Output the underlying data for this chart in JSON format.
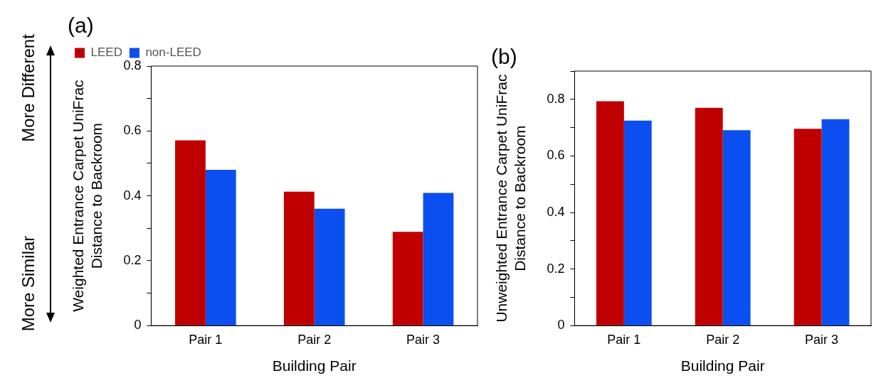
{
  "chart_data": [
    {
      "type": "bar",
      "title": "(a)",
      "categories": [
        "Pair 1",
        "Pair 2",
        "Pair 3"
      ],
      "xlabel": "Building Pair",
      "ylabel": "Weighted Entrance Carpet UniFrac\nDistance to Backroom",
      "series": [
        {
          "name": "LEED",
          "color": "#c00000",
          "values": [
            0.571,
            0.413,
            0.289
          ]
        },
        {
          "name": "non-LEED",
          "color": "#0b4ff0",
          "values": [
            0.48,
            0.36,
            0.409
          ]
        }
      ],
      "ylim": [
        0,
        0.8
      ],
      "yticks": [
        0,
        {
          "value": 0.1,
          "label": null
        },
        0.2,
        {
          "value": 0.3,
          "label": null
        },
        0.4,
        {
          "value": 0.5,
          "label": null
        },
        0.6,
        {
          "value": 0.7,
          "label": null
        },
        0.8
      ],
      "grid": false,
      "legend": "top",
      "annotations": [
        "More Different",
        "More Similar"
      ]
    },
    {
      "type": "bar",
      "title": "(b)",
      "categories": [
        "Pair 1",
        "Pair 2",
        "Pair 3"
      ],
      "xlabel": "Building Pair",
      "ylabel": "Unweighted Entrance Carpet UniFrac\nDistance to Backroom",
      "series": [
        {
          "color": "#c00000",
          "values": [
            0.793,
            0.77,
            0.696
          ]
        },
        {
          "color": "#0b4ff0",
          "values": [
            0.725,
            0.691,
            0.73
          ]
        }
      ],
      "ylim": [
        0,
        0.9
      ],
      "yticks": [
        0,
        {
          "value": 0.1,
          "label": null
        },
        0.2,
        {
          "value": 0.3,
          "label": null
        },
        0.4,
        {
          "value": 0.5,
          "label": null
        },
        0.6,
        {
          "value": 0.7,
          "label": null
        },
        0.8,
        {
          "value": 0.9,
          "label": null
        }
      ],
      "grid": false,
      "legend": false
    }
  ]
}
